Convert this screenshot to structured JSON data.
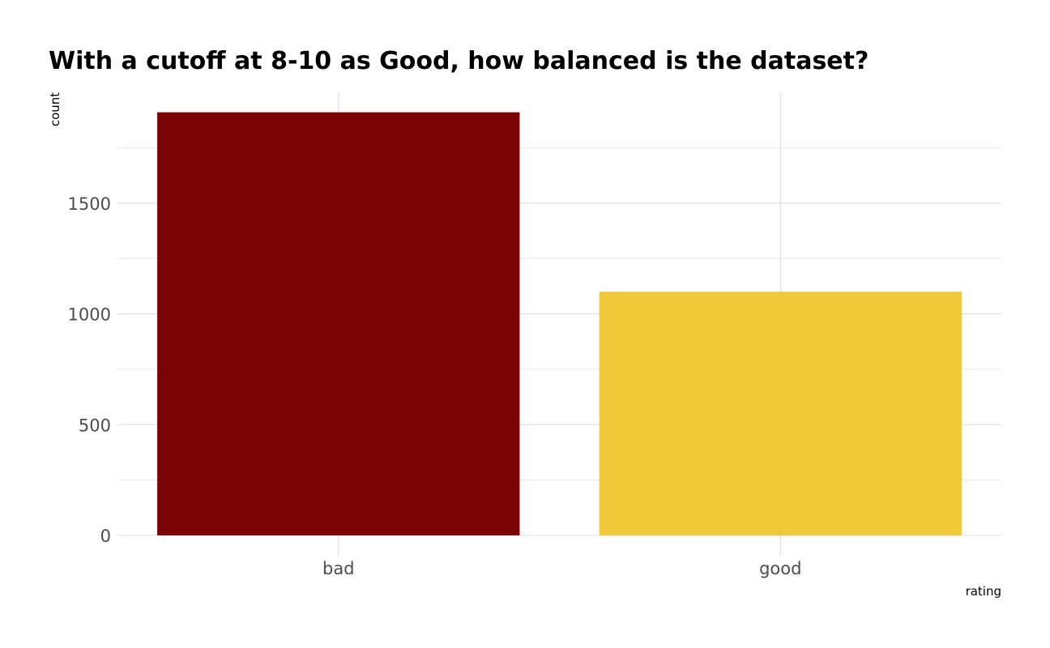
{
  "chart_data": {
    "type": "bar",
    "title": "With a cutoff at 8-10 as Good, how balanced is the dataset?",
    "xlabel": "rating",
    "ylabel": "count",
    "categories": [
      "bad",
      "good"
    ],
    "values": [
      1910,
      1100
    ],
    "colors": [
      "#7a0403",
      "#f0c93a"
    ],
    "ylim": [
      0,
      2000
    ],
    "yticks": [
      0,
      500,
      1000,
      1500
    ],
    "grid": true,
    "legend": "none"
  }
}
